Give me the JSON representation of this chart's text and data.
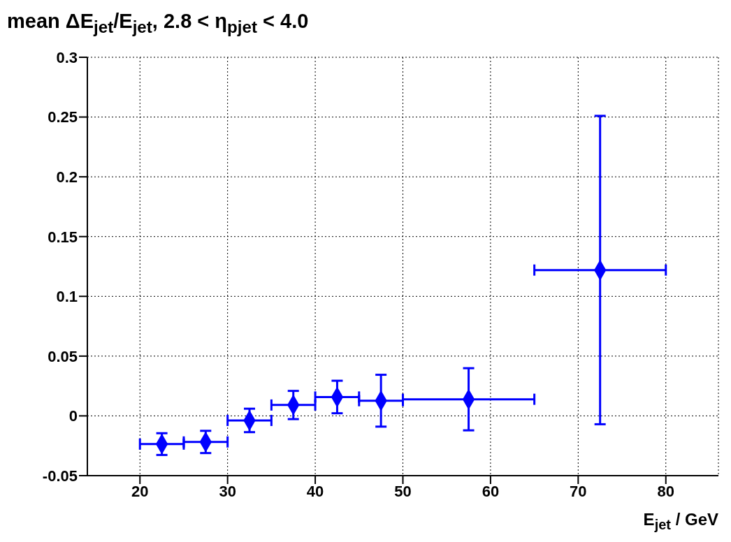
{
  "chart_data": {
    "type": "scatter",
    "title": "mean ΔE$_{jet}$/E$_{jet}$, 2.8 < η$_{pjet}$ < 4.0",
    "xlabel": "E$_{jet}$ / GeV",
    "x": [
      22.5,
      27.5,
      32.5,
      37.5,
      42.5,
      47.5,
      57.5,
      72.5
    ],
    "series": [
      {
        "color": "#0000ff",
        "values": [
          -0.0236,
          -0.0218,
          -0.0038,
          0.0091,
          0.0158,
          0.0127,
          0.0139,
          0.122
        ],
        "errors": [
          0.0091,
          0.0093,
          0.0098,
          0.0118,
          0.0136,
          0.0217,
          0.026,
          0.129
        ],
        "xerrors": [
          2.5,
          2.5,
          2.5,
          2.5,
          2.5,
          2.5,
          7.5,
          7.5
        ]
      }
    ],
    "xlim": [
      14,
      86
    ],
    "xticks": [
      20,
      30,
      40,
      50,
      60,
      70,
      80
    ],
    "ylim": [
      -0.05,
      0.3
    ],
    "yticks": [
      -0.05,
      0,
      0.05,
      0.1,
      0.15,
      0.2,
      0.25,
      0.3
    ],
    "grid": true,
    "marker": "diamond"
  }
}
